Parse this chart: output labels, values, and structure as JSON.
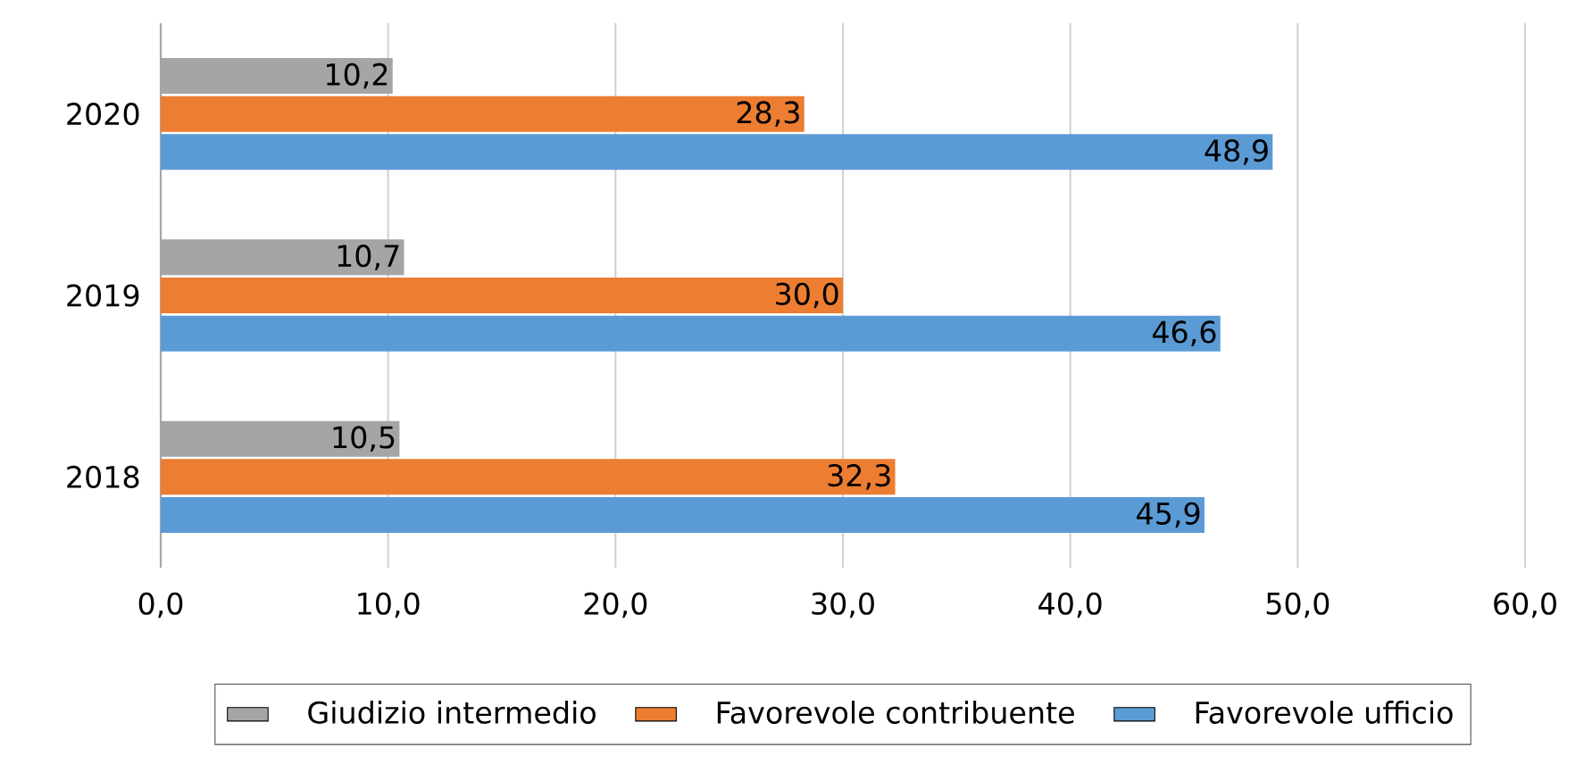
{
  "chart_data": {
    "type": "bar",
    "orientation": "horizontal",
    "categories": [
      "2020",
      "2019",
      "2018"
    ],
    "series": [
      {
        "name": "Giudizio intermedio",
        "color": "#a5a5a5",
        "values": [
          10.2,
          10.7,
          10.5
        ],
        "value_labels": [
          "10,2",
          "10,7",
          "10,5"
        ]
      },
      {
        "name": "Favorevole contribuente",
        "color": "#ed7d31",
        "values": [
          28.3,
          30.0,
          32.3
        ],
        "value_labels": [
          "28,3",
          "30,0",
          "32,3"
        ]
      },
      {
        "name": "Favorevole ufficio",
        "color": "#5b9bd5",
        "values": [
          48.9,
          46.6,
          45.9
        ],
        "value_labels": [
          "48,9",
          "46,6",
          "45,9"
        ]
      }
    ],
    "xlim": [
      0,
      60
    ],
    "xticks": [
      {
        "value": 0,
        "label": "0,0"
      },
      {
        "value": 10,
        "label": "10,0"
      },
      {
        "value": 20,
        "label": "20,0"
      },
      {
        "value": 30,
        "label": "30,0"
      },
      {
        "value": 40,
        "label": "40,0"
      },
      {
        "value": 50,
        "label": "50,0"
      },
      {
        "value": 60,
        "label": "60,0"
      }
    ],
    "grid": "x",
    "legend": "bottom"
  }
}
